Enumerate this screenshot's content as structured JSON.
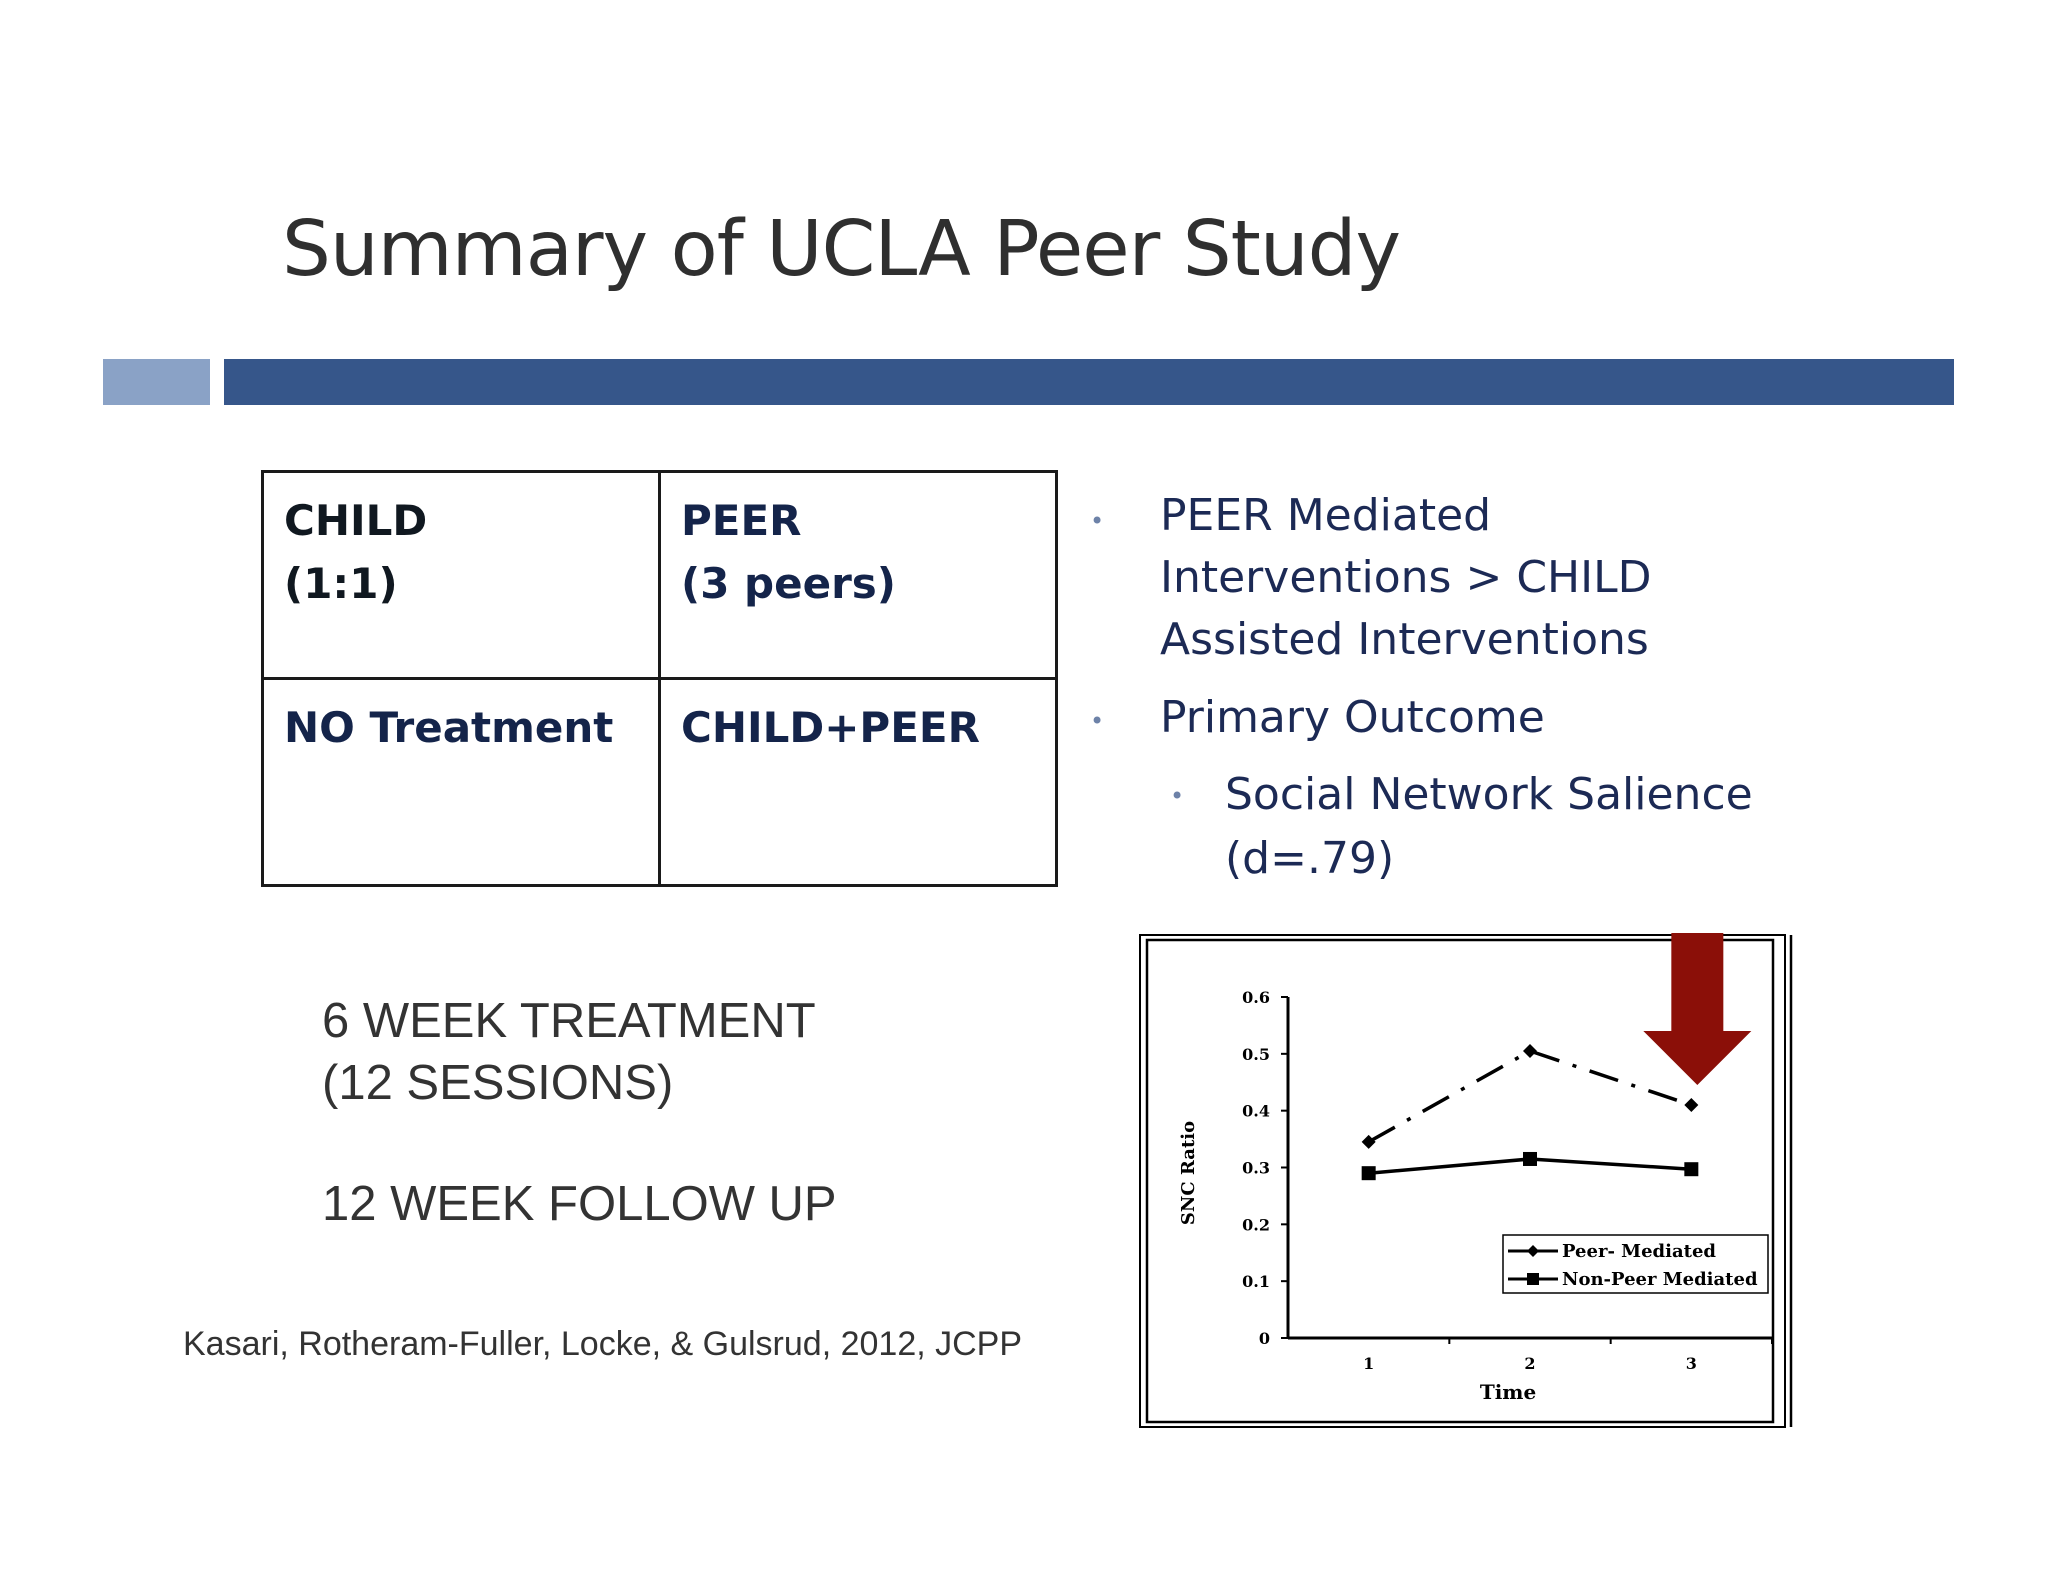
{
  "slide": {
    "title": "Summary of UCLA Peer Study"
  },
  "design_table": {
    "cells": [
      [
        "CHILD\n(1:1)",
        "PEER\n(3 peers)"
      ],
      [
        "NO Treatment",
        "CHILD+PEER"
      ]
    ]
  },
  "bullets": {
    "b1": "PEER Mediated\nInterventions > CHILD\nAssisted Interventions",
    "b2": "Primary Outcome",
    "b3": "Social Network Salience\n(d=.79)"
  },
  "treatment": {
    "duration": "6 WEEK TREATMENT\n(12 SESSIONS)",
    "follow_up": "12 WEEK FOLLOW UP"
  },
  "citation": "Kasari, Rotheram-Fuller, Locke, & Gulsrud, 2012, JCPP",
  "colors": {
    "accent_light": "#8aa2c6",
    "accent_dark": "#36568a",
    "arrow": "#8b0f08"
  },
  "chart_data": {
    "type": "line",
    "title": "",
    "xlabel": "Time",
    "ylabel": "SNC Ratio",
    "x": [
      1,
      2,
      3
    ],
    "x_ticks": [
      "1",
      "2",
      "3"
    ],
    "y_ticks": [
      "0",
      "0.1",
      "0.2",
      "0.3",
      "0.4",
      "0.5",
      "0.6"
    ],
    "ylim": [
      0,
      0.6
    ],
    "xlim": [
      0.5,
      3.5
    ],
    "grid": false,
    "legend_position": "bottom-right",
    "series": [
      {
        "name": "Peer- Mediated",
        "values": [
          0.345,
          0.505,
          0.41
        ],
        "style": "dash-dot",
        "marker": "diamond"
      },
      {
        "name": "Non-Peer Mediated",
        "values": [
          0.29,
          0.315,
          0.297
        ],
        "style": "solid",
        "marker": "square"
      }
    ],
    "annotation": {
      "type": "arrow-down",
      "x": 3,
      "color": "#8b0f08"
    }
  }
}
